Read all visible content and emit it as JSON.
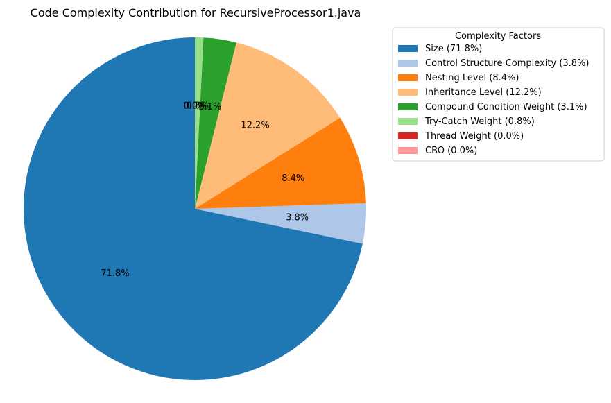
{
  "chart_data": {
    "type": "pie",
    "title": "Code Complexity Contribution for RecursiveProcessor1.java",
    "legend_title": "Complexity Factors",
    "legend_position": "right",
    "start_angle": "top",
    "direction": "counterclockwise",
    "slices": [
      {
        "label": "Size",
        "value": 71.8,
        "pct_label": "71.8%",
        "legend": "Size (71.8%)",
        "color": "#1f77b4"
      },
      {
        "label": "Control Structure Complexity",
        "value": 3.8,
        "pct_label": "3.8%",
        "legend": "Control Structure Complexity (3.8%)",
        "color": "#aec7e8"
      },
      {
        "label": "Nesting Level",
        "value": 8.4,
        "pct_label": "8.4%",
        "legend": "Nesting Level (8.4%)",
        "color": "#ff7f0e"
      },
      {
        "label": "Inheritance Level",
        "value": 12.2,
        "pct_label": "12.2%",
        "legend": "Inheritance Level (12.2%)",
        "color": "#ffbb78"
      },
      {
        "label": "Compound Condition Weight",
        "value": 3.1,
        "pct_label": "3.1%",
        "legend": "Compound Condition Weight (3.1%)",
        "color": "#2ca02c"
      },
      {
        "label": "Try-Catch Weight",
        "value": 0.8,
        "pct_label": "0.8%",
        "legend": "Try-Catch Weight (0.8%)",
        "color": "#98df8a"
      },
      {
        "label": "Thread Weight",
        "value": 0.0,
        "pct_label": "0.0%",
        "legend": "Thread Weight (0.0%)",
        "color": "#d62728"
      },
      {
        "label": "CBO",
        "value": 0.0,
        "pct_label": "0.0%",
        "legend": "CBO (0.0%)",
        "color": "#ff9896"
      }
    ]
  }
}
